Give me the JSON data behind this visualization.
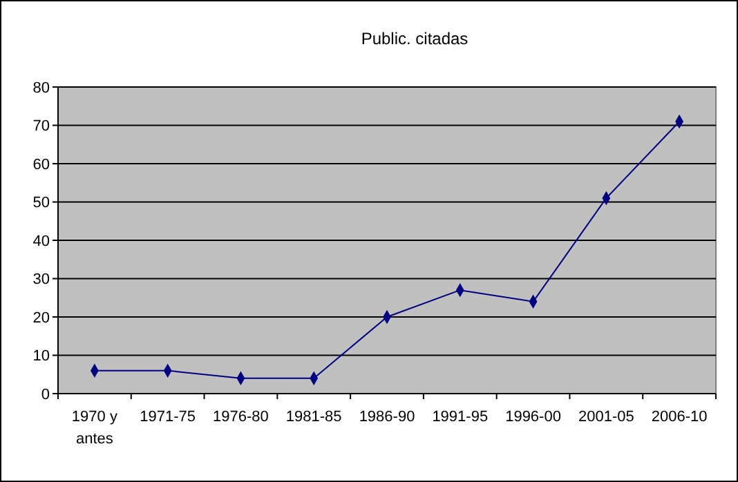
{
  "chart_data": {
    "type": "line",
    "title": "Public. citadas",
    "categories": [
      "1970 y antes",
      "1971-75",
      "1976-80",
      "1981-85",
      "1986-90",
      "1991-95",
      "1996-00",
      "2001-05",
      "2006-10"
    ],
    "series": [
      {
        "color": "#000080",
        "values": [
          6,
          6,
          4,
          4,
          20,
          27,
          24,
          51,
          71
        ]
      }
    ],
    "ylim": [
      0,
      80
    ],
    "yticks": [
      0,
      10,
      20,
      30,
      40,
      50,
      60,
      70,
      80
    ],
    "grid": "y",
    "marker": "diamond",
    "line_style": "solid"
  }
}
